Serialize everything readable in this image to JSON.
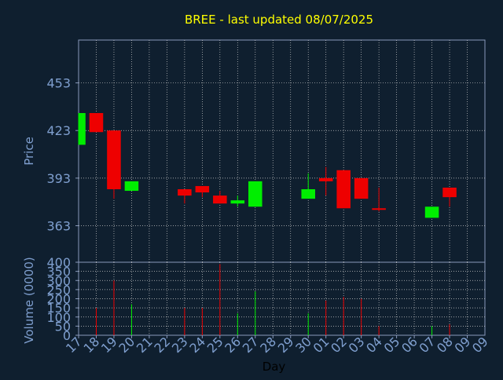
{
  "chart_data": {
    "type": "candlestick",
    "title": "BREE - last updated 08/07/2025",
    "xlabel": "Day",
    "categories": [
      "17",
      "18",
      "19",
      "20",
      "21",
      "22",
      "23",
      "24",
      "25",
      "26",
      "27",
      "28",
      "29",
      "30",
      "01",
      "02",
      "03",
      "04",
      "05",
      "06",
      "07",
      "08",
      "09"
    ],
    "price_panel": {
      "ylabel": "Price",
      "yticks": [
        363,
        393,
        423,
        453
      ],
      "ylim": [
        340,
        480
      ],
      "candles": [
        {
          "day": "17",
          "open": 414,
          "high": 434,
          "low": 414,
          "close": 434
        },
        {
          "day": "18",
          "open": 434,
          "high": 434,
          "low": 422,
          "close": 422
        },
        {
          "day": "19",
          "open": 423,
          "high": 423,
          "low": 380,
          "close": 386
        },
        {
          "day": "20",
          "open": 385,
          "high": 391,
          "low": 385,
          "close": 391
        },
        {
          "day": "23",
          "open": 386,
          "high": 386,
          "low": 377,
          "close": 382
        },
        {
          "day": "24",
          "open": 388,
          "high": 388,
          "low": 381,
          "close": 384
        },
        {
          "day": "25",
          "open": 382,
          "high": 385,
          "low": 377,
          "close": 377
        },
        {
          "day": "26",
          "open": 377,
          "high": 382,
          "low": 375,
          "close": 379
        },
        {
          "day": "27",
          "open": 375,
          "high": 391,
          "low": 375,
          "close": 391
        },
        {
          "day": "30",
          "open": 380,
          "high": 396,
          "low": 380,
          "close": 386
        },
        {
          "day": "01",
          "open": 393,
          "high": 400,
          "low": 382,
          "close": 391
        },
        {
          "day": "02",
          "open": 398,
          "high": 398,
          "low": 374,
          "close": 374
        },
        {
          "day": "03",
          "open": 393,
          "high": 393,
          "low": 380,
          "close": 380
        },
        {
          "day": "04",
          "open": 374,
          "high": 387,
          "low": 372,
          "close": 373
        },
        {
          "day": "07",
          "open": 368,
          "high": 375,
          "low": 368,
          "close": 375
        },
        {
          "day": "08",
          "open": 387,
          "high": 387,
          "low": 375,
          "close": 381
        }
      ]
    },
    "volume_panel": {
      "ylabel": "Volume (0000)",
      "yticks": [
        0,
        50,
        100,
        150,
        200,
        250,
        300,
        350,
        400
      ],
      "ylim": [
        0,
        400
      ],
      "bars": [
        {
          "day": "18",
          "value": 150,
          "direction": "down"
        },
        {
          "day": "19",
          "value": 300,
          "direction": "down"
        },
        {
          "day": "20",
          "value": 170,
          "direction": "up"
        },
        {
          "day": "23",
          "value": 150,
          "direction": "down"
        },
        {
          "day": "24",
          "value": 150,
          "direction": "down"
        },
        {
          "day": "25",
          "value": 390,
          "direction": "down"
        },
        {
          "day": "26",
          "value": 120,
          "direction": "up"
        },
        {
          "day": "27",
          "value": 240,
          "direction": "up"
        },
        {
          "day": "30",
          "value": 120,
          "direction": "up"
        },
        {
          "day": "01",
          "value": 190,
          "direction": "down"
        },
        {
          "day": "02",
          "value": 210,
          "direction": "down"
        },
        {
          "day": "03",
          "value": 200,
          "direction": "down"
        },
        {
          "day": "04",
          "value": 50,
          "direction": "down"
        },
        {
          "day": "07",
          "value": 50,
          "direction": "up"
        },
        {
          "day": "08",
          "value": 60,
          "direction": "down"
        }
      ]
    },
    "grid": true,
    "colors": {
      "background": "#0f1f2f",
      "up": "#00ee00",
      "down": "#ee0000",
      "axis": "#8899bb",
      "grid": "#cccccc",
      "tick_text": "#7f9fcf",
      "title": "#ffff00"
    }
  }
}
